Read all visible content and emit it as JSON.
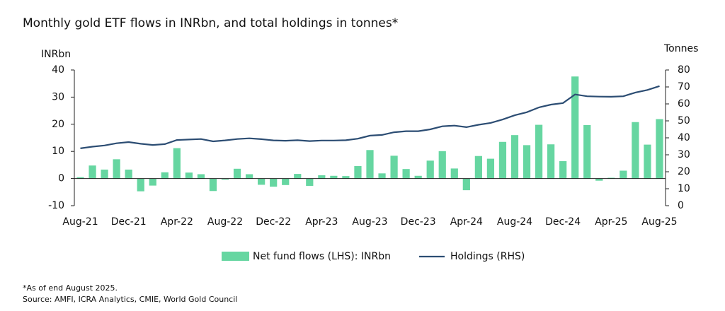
{
  "chart_data": {
    "type": "bar",
    "title": "Monthly gold ETF flows in INRbn, and total holdings in tonnes*",
    "y_label": "INRbn",
    "y2_label": "Tonnes",
    "categories": [
      "Aug-21",
      null,
      null,
      null,
      "Dec-21",
      null,
      null,
      null,
      "Apr-22",
      null,
      null,
      null,
      "Aug-22",
      null,
      null,
      null,
      "Dec-22",
      null,
      null,
      null,
      "Apr-23",
      null,
      null,
      null,
      "Aug-23",
      null,
      null,
      null,
      "Dec-23",
      null,
      null,
      null,
      "Apr-24",
      null,
      null,
      null,
      "Aug-24",
      null,
      null,
      null,
      "Dec-24",
      null,
      null,
      null,
      "Apr-25",
      null,
      null,
      null,
      "Aug-25"
    ],
    "series": [
      {
        "name": "Net fund flows (LHS): INRbn",
        "type": "bar",
        "color": "#66d6a1",
        "values": [
          0.5,
          4.8,
          3.3,
          7.1,
          3.3,
          -4.7,
          -2.6,
          2.3,
          11.2,
          2.2,
          1.6,
          -4.6,
          -0.4,
          3.6,
          1.6,
          -2.3,
          -3.0,
          -2.4,
          1.7,
          -2.7,
          1.2,
          1.0,
          0.9,
          4.6,
          10.5,
          1.9,
          8.4,
          3.5,
          1.0,
          6.6,
          10.1,
          3.7,
          -4.3,
          8.3,
          7.3,
          13.5,
          16.0,
          12.3,
          19.8,
          12.6,
          6.4,
          37.6,
          19.7,
          -0.8,
          0.3,
          2.9,
          20.8,
          12.5,
          21.9
        ]
      },
      {
        "name": "Holdings (RHS)",
        "type": "line",
        "axis": "y2",
        "color": "#2c4d73",
        "values": [
          33.8,
          34.8,
          35.5,
          36.8,
          37.5,
          36.5,
          35.8,
          36.3,
          38.7,
          39.0,
          39.3,
          37.9,
          38.5,
          39.3,
          39.7,
          39.2,
          38.5,
          38.3,
          38.6,
          38.1,
          38.4,
          38.4,
          38.6,
          39.5,
          41.3,
          41.7,
          43.3,
          43.9,
          43.9,
          45.0,
          46.8,
          47.2,
          46.3,
          47.7,
          48.8,
          50.8,
          53.3,
          55.1,
          57.9,
          59.6,
          60.5,
          65.6,
          64.5,
          64.3,
          64.2,
          64.5,
          66.7,
          68.2,
          70.5
        ]
      }
    ],
    "ylim": [
      -10,
      40
    ],
    "yticks": [
      -10,
      0,
      10,
      20,
      30,
      40
    ],
    "y2lim": [
      0,
      80
    ],
    "y2ticks": [
      0,
      10,
      20,
      30,
      40,
      50,
      60,
      70,
      80
    ],
    "grid": false,
    "notes": [
      "*As of end August 2025.",
      "Source: AMFI, ICRA Analytics, CMIE, World Gold Council"
    ]
  }
}
